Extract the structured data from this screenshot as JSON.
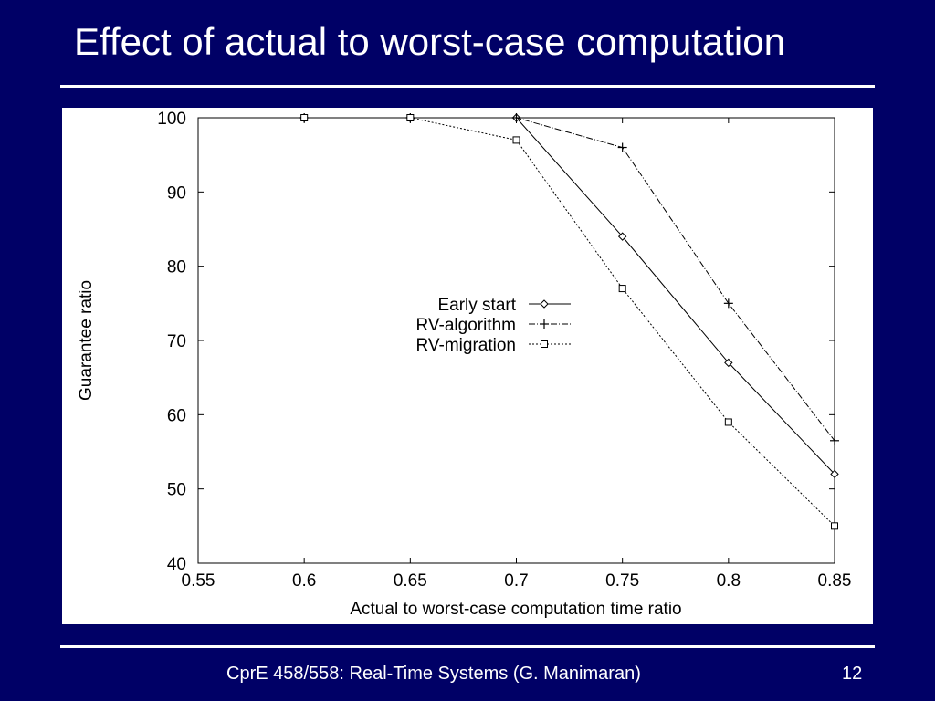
{
  "slide": {
    "title": "Effect of actual to worst-case computation",
    "footer": "CprE 458/558: Real-Time Systems (G. Manimaran)",
    "page_number": "12"
  },
  "colors": {
    "background": "#000066",
    "text": "#ffffff",
    "plot_background": "#ffffff",
    "plot_ink": "#000000"
  },
  "chart_data": {
    "type": "line",
    "title": "",
    "xlabel": "Actual to worst-case computation time ratio",
    "ylabel": "Guarantee ratio",
    "xlim": [
      0.55,
      0.85
    ],
    "ylim": [
      40,
      100
    ],
    "x_ticks": [
      "0.55",
      "0.6",
      "0.65",
      "0.7",
      "0.75",
      "0.8",
      "0.85"
    ],
    "y_ticks": [
      "40",
      "50",
      "60",
      "70",
      "80",
      "90",
      "100"
    ],
    "grid": false,
    "legend_position": "center-right",
    "x": [
      0.6,
      0.65,
      0.7,
      0.75,
      0.8,
      0.85
    ],
    "series": [
      {
        "name": "Early start",
        "marker": "diamond",
        "line_style": "solid",
        "values": [
          100,
          100,
          100,
          84,
          67,
          52
        ]
      },
      {
        "name": "RV-algorithm",
        "marker": "plus",
        "line_style": "dash-dot",
        "values": [
          100,
          100,
          100,
          96,
          75,
          56.5
        ]
      },
      {
        "name": "RV-migration",
        "marker": "square",
        "line_style": "dotted",
        "values": [
          100,
          100,
          97,
          77,
          59,
          45
        ]
      }
    ]
  }
}
